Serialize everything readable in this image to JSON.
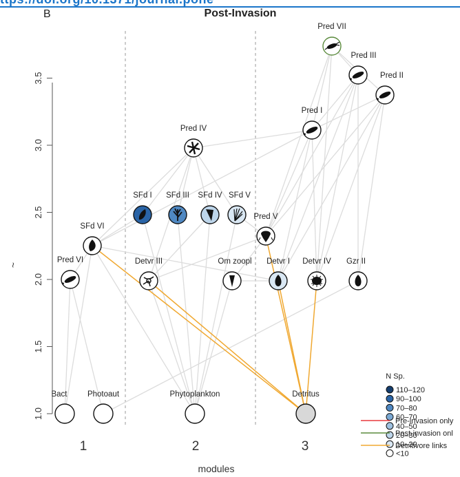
{
  "header_partial": "ttps://doi.org/10.1371/journal.pone",
  "panel_letter": "B",
  "title": "Post-Invasion",
  "xlabel": "modules",
  "ylabel_partial": "~",
  "colors": {
    "edge": "#dcdcdc",
    "detritivore_link": "#f0a830",
    "pre_invasion": "#e8383d",
    "post_invasion": "#5a8a3c",
    "node_stroke": "#111111",
    "module_divider": "#999999"
  },
  "chart_data": {
    "type": "network",
    "x_categories": [
      "1",
      "2",
      "3"
    ],
    "y_ticks": [
      "1.0",
      "1.5",
      "2.0",
      "2.5",
      "3.0",
      "3.5"
    ],
    "ylim": [
      1.0,
      3.7
    ],
    "nodes": [
      {
        "id": "bact",
        "label": "Bact",
        "module": 1,
        "level": 1.0,
        "nsp": "<10",
        "icon": "empty"
      },
      {
        "id": "photoaut",
        "label": "Photoaut",
        "module": 1,
        "level": 1.0,
        "nsp": "<10",
        "icon": "empty"
      },
      {
        "id": "phyto",
        "label": "Phytoplankton",
        "module": 2,
        "level": 1.0,
        "nsp": "<10",
        "icon": "empty"
      },
      {
        "id": "detritus",
        "label": "Detritus",
        "module": 3,
        "level": 1.0,
        "nsp": "<10",
        "icon": "empty",
        "fill": "#d8d8d8"
      },
      {
        "id": "predvi",
        "label": "Pred VI",
        "module": 1,
        "level": 2.0,
        "nsp": "<10",
        "icon": "fish-icon"
      },
      {
        "id": "sfdvi",
        "label": "SFd VI",
        "module": 1,
        "level": 2.25,
        "nsp": "<10",
        "icon": "bivalve-icon"
      },
      {
        "id": "detvriii",
        "label": "Detvr III",
        "module": 2,
        "level": 2.0,
        "nsp": "<10",
        "icon": "starfish-icon"
      },
      {
        "id": "omzoopl",
        "label": "Om zoopl",
        "module": 2,
        "level": 2.0,
        "nsp": "<10",
        "icon": "cone-icon"
      },
      {
        "id": "sfdi",
        "label": "SFd I",
        "module": 2,
        "level": 2.5,
        "nsp": "90–100",
        "icon": "leaf-icon"
      },
      {
        "id": "sfdiii",
        "label": "SFd III",
        "module": 2,
        "level": 2.5,
        "nsp": "70–80",
        "icon": "coral-icon"
      },
      {
        "id": "sfdiv",
        "label": "SFd IV",
        "module": 2,
        "level": 2.5,
        "nsp": "20–30",
        "icon": "horn-icon"
      },
      {
        "id": "sfdv",
        "label": "SFd V",
        "module": 2,
        "level": 2.5,
        "nsp": "10–20",
        "icon": "fan-worm-icon"
      },
      {
        "id": "prediv",
        "label": "Pred IV",
        "module": 2,
        "level": 3.0,
        "nsp": "<10",
        "icon": "star-icon"
      },
      {
        "id": "predv",
        "label": "Pred V",
        "module": 3,
        "level": 2.3,
        "nsp": "<10",
        "icon": "crab-icon"
      },
      {
        "id": "detvri",
        "label": "Detvr I",
        "module": 3,
        "level": 2.0,
        "nsp": "10–20",
        "icon": "snail-icon"
      },
      {
        "id": "detvriv",
        "label": "Detvr IV",
        "module": 3,
        "level": 2.0,
        "nsp": "<10",
        "icon": "urchin-icon"
      },
      {
        "id": "gzrii",
        "label": "Gzr II",
        "module": 3,
        "level": 2.0,
        "nsp": "<10",
        "icon": "snail-icon"
      },
      {
        "id": "predi",
        "label": "Pred I",
        "module": 3,
        "level": 3.15,
        "nsp": "<10",
        "icon": "fish-icon"
      },
      {
        "id": "predii",
        "label": "Pred II",
        "module": 3,
        "level": 3.45,
        "nsp": "<10",
        "icon": "fish-icon"
      },
      {
        "id": "prediii",
        "label": "Pred III",
        "module": 3,
        "level": 3.55,
        "nsp": "<10",
        "icon": "fish-icon"
      },
      {
        "id": "predvii",
        "label": "Pred VII",
        "module": 3,
        "level": 3.75,
        "nsp": "<10",
        "icon": "lobster-icon",
        "highlight": "post-invasion"
      }
    ],
    "legend": {
      "title": "N Sp.",
      "bins": [
        {
          "label": "110–120",
          "color": "#153e6e"
        },
        {
          "label": "90–100",
          "color": "#2a64a6"
        },
        {
          "label": "70–80",
          "color": "#4f88c2"
        },
        {
          "label": "60–70",
          "color": "#7aa8d3"
        },
        {
          "label": "40–50",
          "color": "#9fc1e0"
        },
        {
          "label": "20–30",
          "color": "#bdd5ea"
        },
        {
          "label": "10–20",
          "color": "#d9e7f3"
        },
        {
          "label": "<10",
          "color": "#ffffff"
        }
      ],
      "links": [
        {
          "label": "Pre-invasion only",
          "color": "#e8383d"
        },
        {
          "label": "Post-invasion onl",
          "color": "#5a8a3c"
        },
        {
          "label": "Detritivore links",
          "color": "#f0a830"
        }
      ]
    }
  }
}
